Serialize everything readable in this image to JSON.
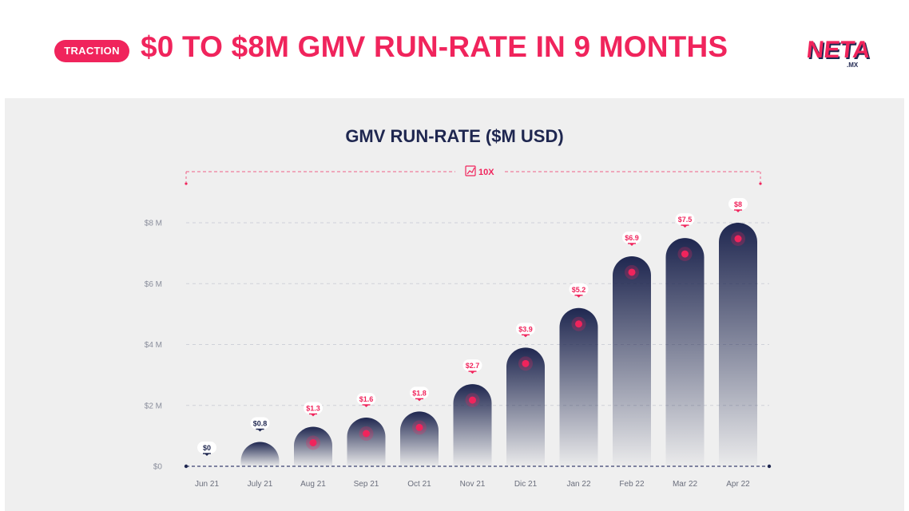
{
  "header": {
    "badge": "TRACTION",
    "headline": "$0 TO $8M GMV RUN-RATE IN 9 MONTHS",
    "logo_text": "NETA",
    "logo_sub": ".MX"
  },
  "colors": {
    "accent": "#f0245c",
    "navy": "#1f2750",
    "panel": "#efefef"
  },
  "chart_data": {
    "type": "bar",
    "title": "GMV RUN-RATE ($M USD)",
    "categories": [
      "Jun 21",
      "July 21",
      "Aug 21",
      "Sep 21",
      "Oct 21",
      "Nov 21",
      "Dic 21",
      "Jan 22",
      "Feb 22",
      "Mar 22",
      "Apr 22"
    ],
    "values": [
      0,
      0.8,
      1.3,
      1.6,
      1.8,
      2.7,
      3.9,
      5.2,
      6.9,
      7.5,
      8
    ],
    "data_labels": [
      "$0",
      "$0.8",
      "$1.3",
      "$1.6",
      "$1.8",
      "$2.7",
      "$3.9",
      "$5.2",
      "$6.9",
      "$7.5",
      "$8"
    ],
    "y_ticks": [
      0,
      2,
      4,
      6,
      8
    ],
    "y_tick_labels": [
      "$0",
      "$2 M",
      "$4 M",
      "$6 M",
      "$8 M"
    ],
    "ylim": [
      0,
      8
    ],
    "grid": true,
    "annotation": {
      "icon": "growth-chart-icon",
      "label": "10X"
    }
  }
}
